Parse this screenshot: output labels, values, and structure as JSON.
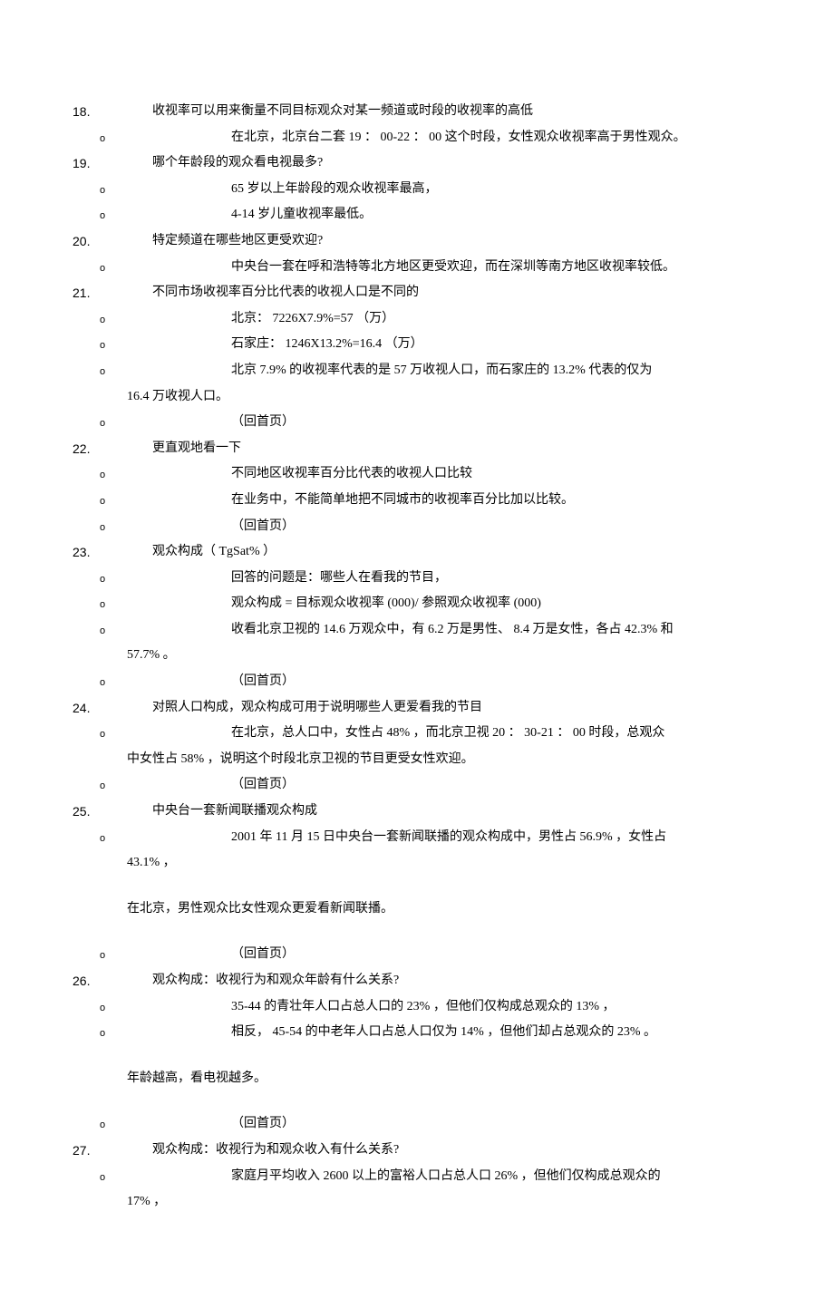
{
  "colors": {
    "text": "#000000",
    "background": "#ffffff"
  },
  "typography": {
    "body_fontsize": 14,
    "font_family_cn": "SimSun",
    "font_family_latin": "Arial"
  },
  "items": [
    {
      "type": "num",
      "num": "18.",
      "text": "收视率可以用来衡量不同目标观众对某一频道或时段的收视率的高低"
    },
    {
      "type": "bullet",
      "text": "在北京，北京台二套 19 ： 00-22 ： 00 这个时段，女性观众收视率高于男性观众。"
    },
    {
      "type": "num",
      "num": "19.",
      "text": "哪个年龄段的观众看电视最多?"
    },
    {
      "type": "bullet",
      "text": "65 岁以上年龄段的观众收视率最高，"
    },
    {
      "type": "bullet",
      "text": "4-14 岁儿童收视率最低。"
    },
    {
      "type": "num",
      "num": "20.",
      "text": "特定频道在哪些地区更受欢迎?"
    },
    {
      "type": "bullet",
      "text": "中央台一套在呼和浩特等北方地区更受欢迎，而在深圳等南方地区收视率较低。"
    },
    {
      "type": "num",
      "num": "21.",
      "text": "不同市场收视率百分比代表的收视人口是不同的"
    },
    {
      "type": "bullet",
      "text": "北京： 7226X7.9%=57 （万）"
    },
    {
      "type": "bullet",
      "text": "石家庄： 1246X13.2%=16.4 （万）"
    },
    {
      "type": "bullet",
      "text": "北京 7.9% 的收视率代表的是 57 万收视人口，而石家庄的 13.2% 代表的仅为"
    },
    {
      "type": "indent",
      "text": "16.4 万收视人口。"
    },
    {
      "type": "bullet",
      "text": "（回首页）"
    },
    {
      "type": "num",
      "num": "22.",
      "text": "更直观地看一下"
    },
    {
      "type": "bullet",
      "text": "不同地区收视率百分比代表的收视人口比较"
    },
    {
      "type": "bullet",
      "text": "在业务中，不能简单地把不同城市的收视率百分比加以比较。"
    },
    {
      "type": "bullet",
      "text": "（回首页）"
    },
    {
      "type": "num",
      "num": "23.",
      "text": "观众构成（ TgSat% ）"
    },
    {
      "type": "bullet",
      "text": "回答的问题是：哪些人在看我的节目，"
    },
    {
      "type": "bullet",
      "text": "观众构成 = 目标观众收视率 (000)/ 参照观众收视率 (000)"
    },
    {
      "type": "bullet",
      "text": "收看北京卫视的 14.6 万观众中，有 6.2 万是男性、 8.4 万是女性，各占 42.3% 和"
    },
    {
      "type": "indent",
      "text": "57.7% 。"
    },
    {
      "type": "bullet",
      "text": "（回首页）"
    },
    {
      "type": "num",
      "num": "24.",
      "text": "对照人口构成，观众构成可用于说明哪些人更爱看我的节目"
    },
    {
      "type": "bullet",
      "text": "在北京，总人口中，女性占 48% ，而北京卫视 20 ： 30-21 ： 00 时段，总观众"
    },
    {
      "type": "indent",
      "text": "中女性占 58% ，说明这个时段北京卫视的节目更受女性欢迎。"
    },
    {
      "type": "bullet",
      "text": "（回首页）"
    },
    {
      "type": "num",
      "num": "25.",
      "text": "中央台一套新闻联播观众构成"
    },
    {
      "type": "bullet",
      "text": "2001 年 11 月 15 日中央台一套新闻联播的观众构成中，男性占 56.9% ，女性占"
    },
    {
      "type": "indent",
      "text": "43.1% ，"
    },
    {
      "type": "plain",
      "text": "在北京，男性观众比女性观众更爱看新闻联播。"
    },
    {
      "type": "bullet",
      "text": "（回首页）"
    },
    {
      "type": "num",
      "num": "26.",
      "text": "观众构成：收视行为和观众年龄有什么关系?"
    },
    {
      "type": "bullet",
      "text": "35-44 的青壮年人口占总人口的 23% ，但他们仅构成总观众的 13% ，"
    },
    {
      "type": "bullet",
      "text": "相反， 45-54 的中老年人口占总人口仅为 14% ，但他们却占总观众的 23% 。"
    },
    {
      "type": "plain",
      "text": "年龄越高，看电视越多。"
    },
    {
      "type": "bullet",
      "text": "（回首页）"
    },
    {
      "type": "num",
      "num": "27.",
      "text": "观众构成：收视行为和观众收入有什么关系?"
    },
    {
      "type": "bullet",
      "text": "家庭月平均收入 2600 以上的富裕人口占总人口 26% ，但他们仅构成总观众的"
    },
    {
      "type": "indent",
      "text": "17% ，"
    }
  ]
}
